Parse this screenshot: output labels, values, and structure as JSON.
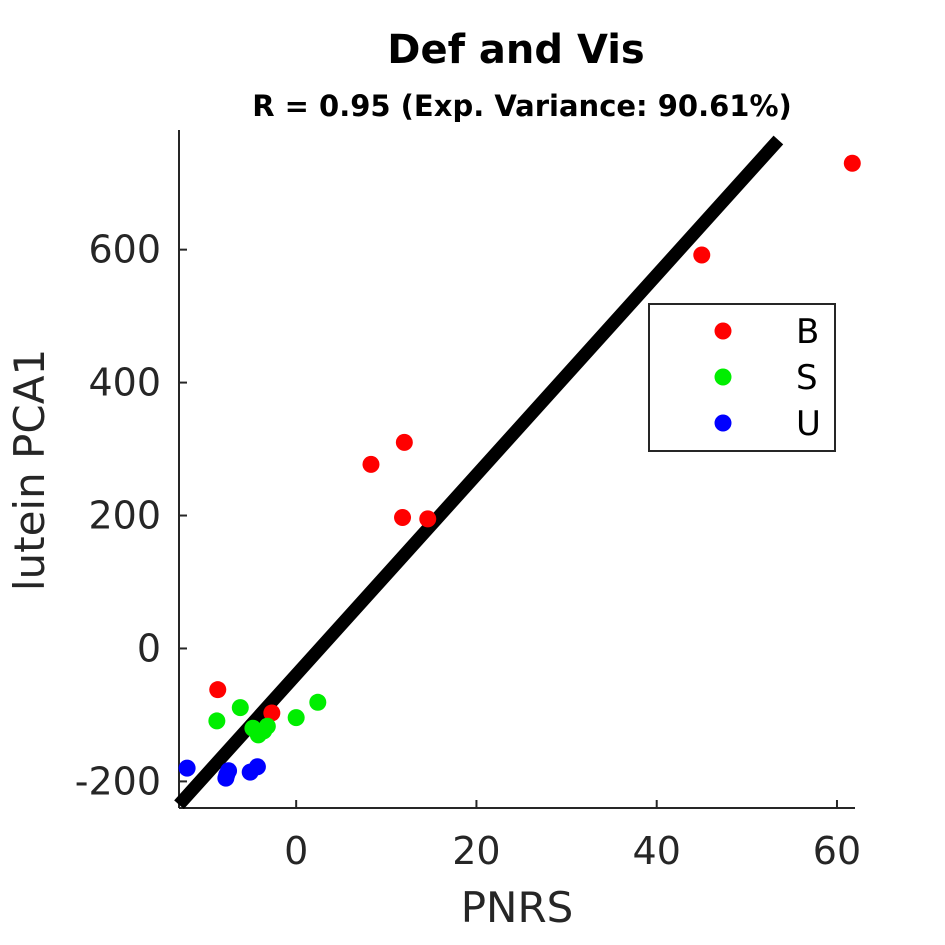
{
  "chart_data": {
    "type": "scatter",
    "title": "Def and Vis",
    "subtitle": "R = 0.95 (Exp. Variance: 90.61%)",
    "xlabel": "PNRS",
    "ylabel": "lutein PCA1",
    "xlim": [
      -13,
      62
    ],
    "ylim": [
      -240,
      780
    ],
    "xticks": [
      0,
      20,
      40,
      60
    ],
    "yticks": [
      -200,
      0,
      200,
      400,
      600
    ],
    "grid": false,
    "legend_position": "right",
    "series": [
      {
        "name": "B",
        "color": "#ff0000",
        "points": [
          {
            "x": 61.7,
            "y": 730
          },
          {
            "x": 45.0,
            "y": 592
          },
          {
            "x": 12.0,
            "y": 310
          },
          {
            "x": 8.3,
            "y": 277
          },
          {
            "x": 11.8,
            "y": 197
          },
          {
            "x": 14.6,
            "y": 195
          },
          {
            "x": -8.7,
            "y": -62
          },
          {
            "x": -2.7,
            "y": -97
          }
        ]
      },
      {
        "name": "S",
        "color": "#00ee00",
        "points": [
          {
            "x": 2.4,
            "y": -81
          },
          {
            "x": 0.0,
            "y": -104
          },
          {
            "x": -6.2,
            "y": -89
          },
          {
            "x": -8.8,
            "y": -109
          },
          {
            "x": -3.2,
            "y": -117
          },
          {
            "x": -3.6,
            "y": -124
          },
          {
            "x": -4.2,
            "y": -130
          },
          {
            "x": -4.8,
            "y": -120
          }
        ]
      },
      {
        "name": "U",
        "color": "#0000ff",
        "points": [
          {
            "x": -12.1,
            "y": -180
          },
          {
            "x": -7.5,
            "y": -184
          },
          {
            "x": -4.3,
            "y": -178
          },
          {
            "x": -5.1,
            "y": -186
          },
          {
            "x": -7.7,
            "y": -190
          },
          {
            "x": -7.8,
            "y": -195
          }
        ]
      }
    ],
    "fit_line": {
      "x": [
        -13,
        53.5
      ],
      "y": [
        -235,
        765
      ],
      "color": "#000000"
    }
  }
}
